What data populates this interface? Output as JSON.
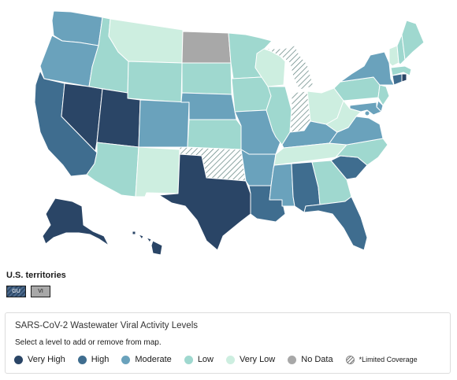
{
  "levels": {
    "very_high": {
      "label": "Very High",
      "color": "#2a4566"
    },
    "high": {
      "label": "High",
      "color": "#3f6d8f"
    },
    "moderate": {
      "label": "Moderate",
      "color": "#6aa2bc"
    },
    "low": {
      "label": "Low",
      "color": "#9fd8cf"
    },
    "very_low": {
      "label": "Very Low",
      "color": "#cdeee0"
    },
    "no_data": {
      "label": "No Data",
      "color": "#a8a8a8"
    },
    "limited": {
      "label": "*Limited Coverage",
      "color": "#ffffff"
    }
  },
  "states": {
    "WA": "moderate",
    "OR": "moderate",
    "CA": "high",
    "NV": "very_high",
    "ID": "low",
    "MT": "very_low",
    "WY": "low",
    "UT": "very_high",
    "AZ": "low",
    "CO": "moderate",
    "NM": "very_low",
    "ND": "no_data",
    "SD": "low",
    "NE": "moderate",
    "KS": "low",
    "OK": "limited",
    "TX": "very_high",
    "MN": "low",
    "IA": "low",
    "MO": "moderate",
    "AR": "moderate",
    "LA": "high",
    "WI": "very_low",
    "IL": "low",
    "MI": "limited",
    "IN": "limited",
    "OH": "very_low",
    "KY": "moderate",
    "TN": "very_low",
    "MS": "moderate",
    "AL": "high",
    "GA": "low",
    "FL": "high",
    "SC": "high",
    "NC": "low",
    "VA": "moderate",
    "WV": "very_low",
    "PA": "low",
    "NY": "moderate",
    "VT": "very_low",
    "NH": "low",
    "ME": "low",
    "MA": "low",
    "RI": "very_high",
    "CT": "high",
    "NJ": "low",
    "DE": "moderate",
    "MD": "moderate",
    "DC": "moderate",
    "AK": "very_high",
    "HI": "very_high"
  },
  "territories": {
    "title": "U.S. territories",
    "items": [
      {
        "code": "GU",
        "level": "very_high"
      },
      {
        "code": "VI",
        "level": "no_data"
      }
    ]
  },
  "legend": {
    "title": "SARS-CoV-2 Wastewater Viral Activity Levels",
    "subtitle": "Select a level to add or remove from map.",
    "items": [
      {
        "label": "Very High",
        "level": "very_high"
      },
      {
        "label": "High",
        "level": "high"
      },
      {
        "label": "Moderate",
        "level": "moderate"
      },
      {
        "label": "Low",
        "level": "low"
      },
      {
        "label": "Very Low",
        "level": "very_low"
      },
      {
        "label": "No Data",
        "level": "no_data"
      },
      {
        "label": "*Limited Coverage",
        "level": "limited"
      }
    ]
  }
}
